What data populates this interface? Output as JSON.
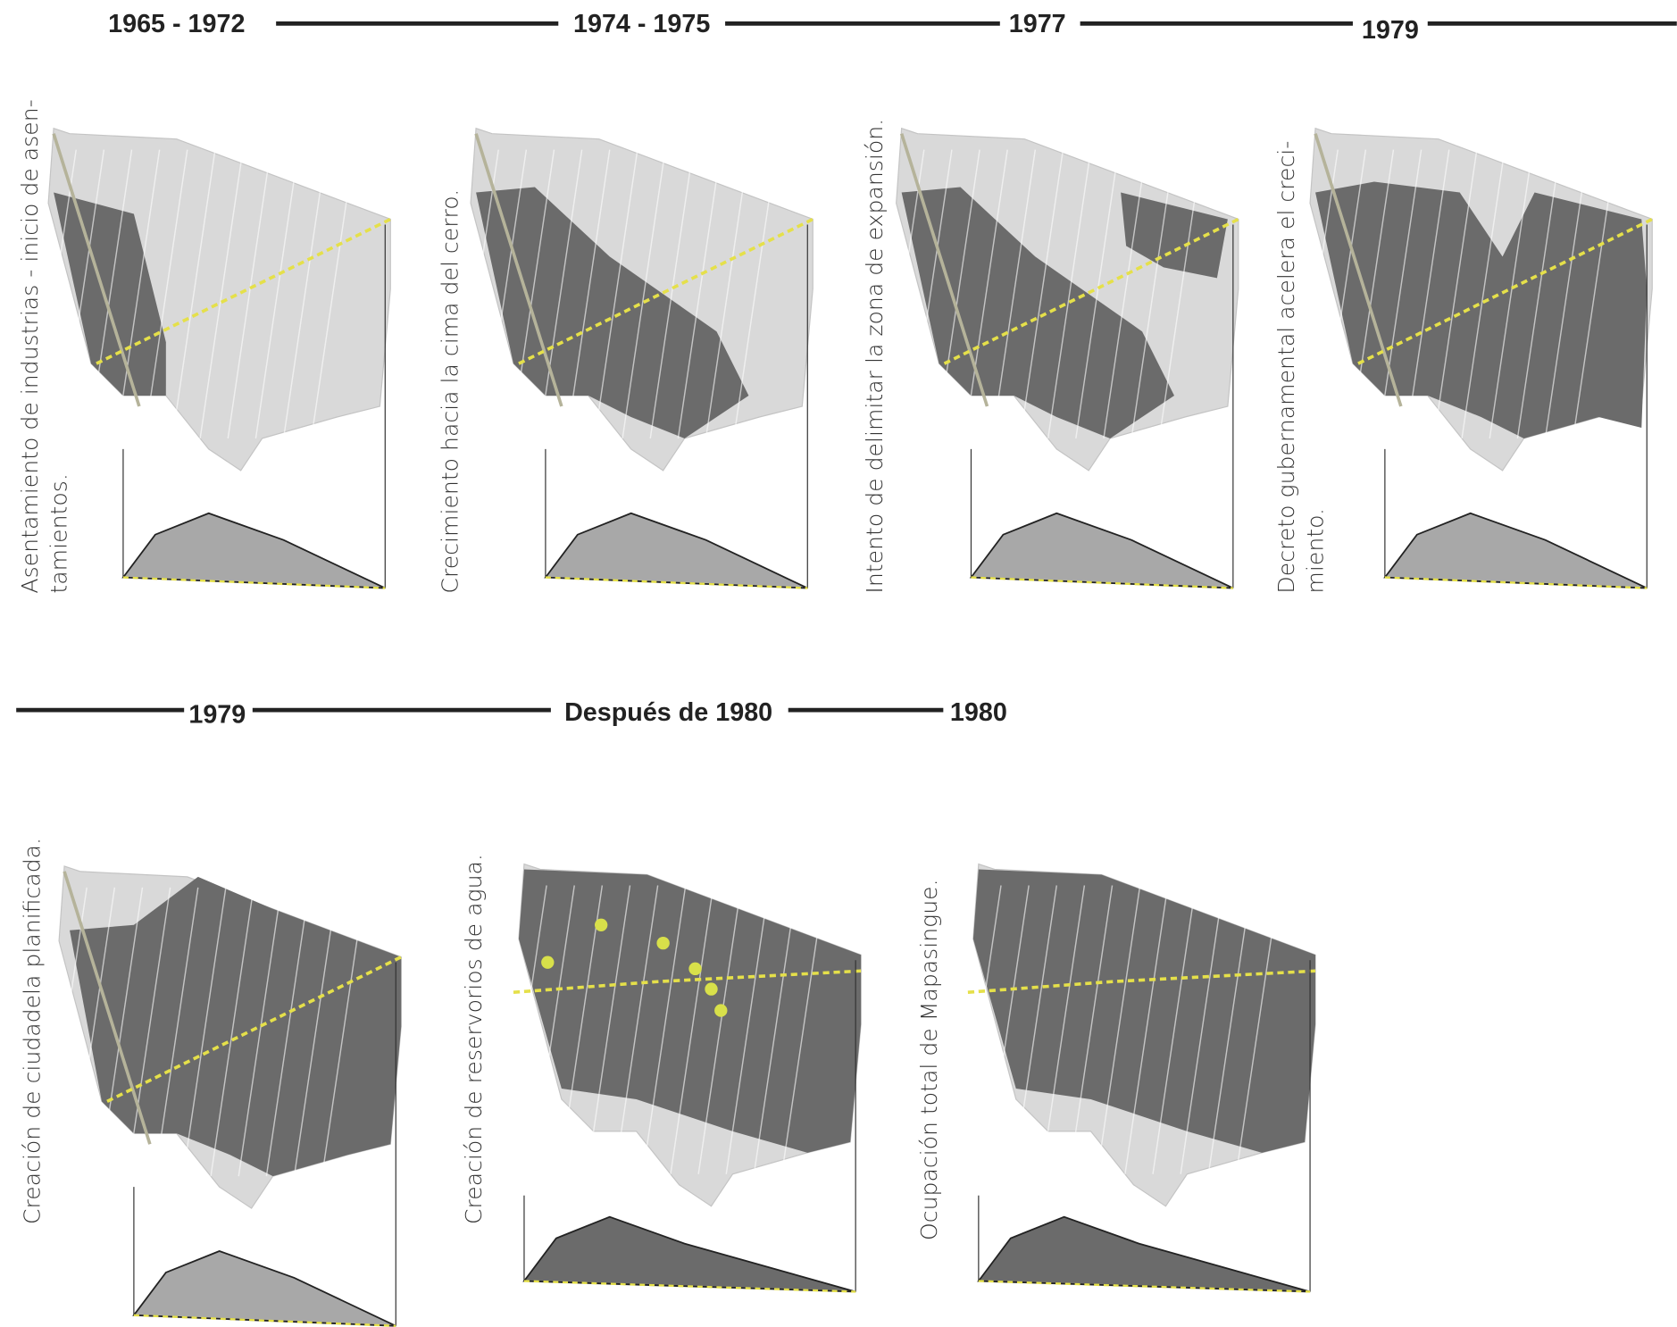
{
  "timeline_top": {
    "labels": [
      "1965 - 1972",
      "1974 - 1975",
      "1977",
      "1979"
    ]
  },
  "timeline_bottom": {
    "labels": [
      "1979",
      "Después de 1980",
      "1980"
    ]
  },
  "panels": [
    {
      "caption_lines": [
        "Asentamiento de industrias - inicio de asen-",
        "tamientos."
      ]
    },
    {
      "caption_lines": [
        "Crecimiento hacia la cima del cerro."
      ]
    },
    {
      "caption_lines": [
        "Intento de delimitar la zona de expansión."
      ]
    },
    {
      "caption_lines": [
        "Decreto gubernamental acelera el creci-",
        "miento."
      ]
    },
    {
      "caption_lines": [
        "Creación de ciudadela planificada."
      ]
    },
    {
      "caption_lines": [
        "Creación de reservorios de agua."
      ]
    },
    {
      "caption_lines": [
        "Ocupación total de Mapasingue."
      ]
    }
  ]
}
